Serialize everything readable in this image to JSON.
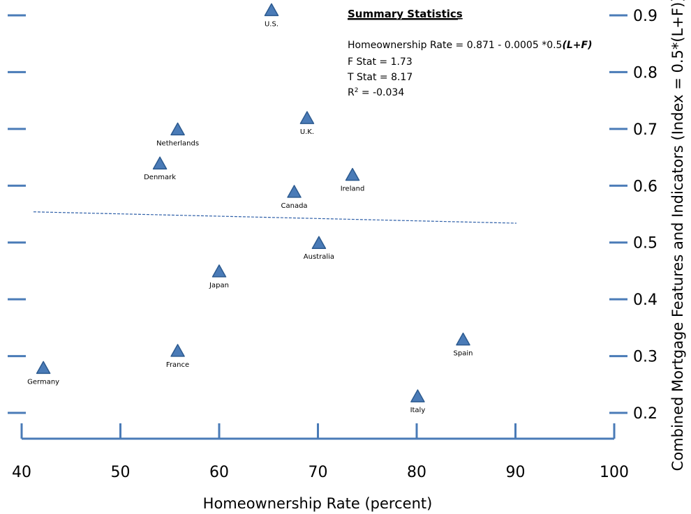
{
  "chart_data": {
    "type": "scatter",
    "xlabel": "Homeownership Rate (percent)",
    "ylabel": "Combined Mortgage Features and Indicators (Index = 0.5*(L+F))",
    "xlim": [
      40,
      100
    ],
    "ylim": [
      0.15,
      0.9
    ],
    "x_ticks": [
      {
        "value": 40,
        "label": "40"
      },
      {
        "value": 50,
        "label": "50"
      },
      {
        "value": 60,
        "label": "60"
      },
      {
        "value": 70,
        "label": "70"
      },
      {
        "value": 80,
        "label": "80"
      },
      {
        "value": 90,
        "label": "90"
      },
      {
        "value": 100,
        "label": "100"
      }
    ],
    "y_ticks": [
      {
        "value": 0.2,
        "label": "0.2"
      },
      {
        "value": 0.3,
        "label": "0.3"
      },
      {
        "value": 0.4,
        "label": "0.4"
      },
      {
        "value": 0.5,
        "label": "0.5"
      },
      {
        "value": 0.6,
        "label": "0.6"
      },
      {
        "value": 0.7,
        "label": "0.7"
      },
      {
        "value": 0.8,
        "label": "0.8"
      },
      {
        "value": 0.9,
        "label": "0.9"
      }
    ],
    "points": [
      {
        "label": "U.S.",
        "x": 65.3,
        "y": 0.91
      },
      {
        "label": "U.K.",
        "x": 68.9,
        "y": 0.72
      },
      {
        "label": "Netherlands",
        "x": 55.8,
        "y": 0.7
      },
      {
        "label": "Denmark",
        "x": 54.0,
        "y": 0.64
      },
      {
        "label": "Ireland",
        "x": 73.5,
        "y": 0.62
      },
      {
        "label": "Canada",
        "x": 67.6,
        "y": 0.59
      },
      {
        "label": "Australia",
        "x": 70.1,
        "y": 0.5
      },
      {
        "label": "Japan",
        "x": 60.0,
        "y": 0.45
      },
      {
        "label": "Spain",
        "x": 84.7,
        "y": 0.33
      },
      {
        "label": "France",
        "x": 55.8,
        "y": 0.31
      },
      {
        "label": "Germany",
        "x": 42.2,
        "y": 0.28
      },
      {
        "label": "Italy",
        "x": 80.1,
        "y": 0.23
      }
    ],
    "trendline": {
      "x": [
        41.2,
        90.1
      ],
      "y": [
        0.554,
        0.534
      ]
    },
    "grid": false,
    "marker": "triangle",
    "colors": {
      "marker_fill": "#4a7bb7",
      "marker_stroke": "#2c5a8f",
      "axis": "#4a7bb7",
      "trendline": "#2e5fa8"
    }
  },
  "summary": {
    "title": "Summary Statistics",
    "equation_prefix": "Homeownership Rate = 0.871 - 0.0005 *0.5",
    "equation_suffix": "(L+F)",
    "f_stat": "F Stat = 1.73",
    "t_stat": "T Stat = 8.17",
    "r2_prefix": "R",
    "r2_sup": "2",
    "r2_suffix": " = -0.034"
  }
}
